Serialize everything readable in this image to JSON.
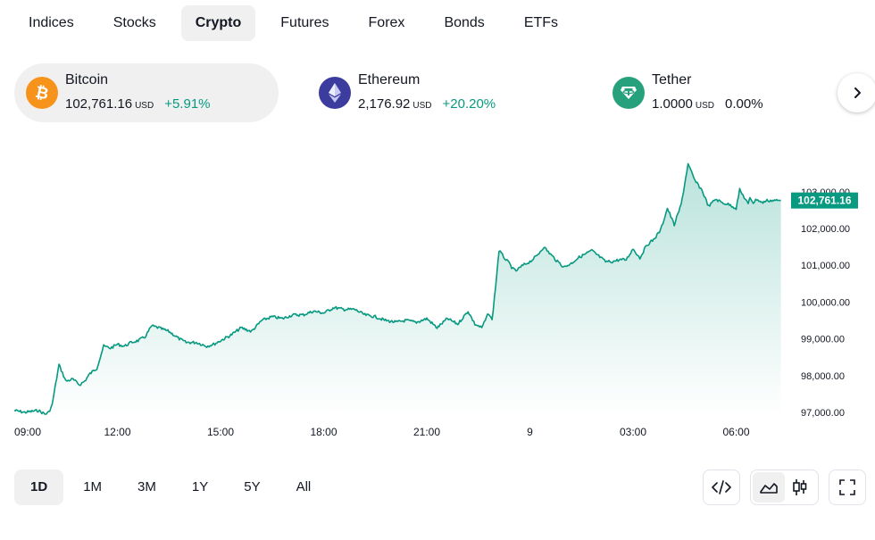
{
  "tabs": [
    {
      "label": "Indices",
      "active": false
    },
    {
      "label": "Stocks",
      "active": false
    },
    {
      "label": "Crypto",
      "active": true
    },
    {
      "label": "Futures",
      "active": false
    },
    {
      "label": "Forex",
      "active": false
    },
    {
      "label": "Bonds",
      "active": false
    },
    {
      "label": "ETFs",
      "active": false
    }
  ],
  "assets": [
    {
      "name": "Bitcoin",
      "price": "102,761.16",
      "currency": "USD",
      "change": "+5.91%",
      "icon": "bitcoin-icon",
      "color": "#f7931a",
      "active": true
    },
    {
      "name": "Ethereum",
      "price": "2,176.92",
      "currency": "USD",
      "change": "+20.20%",
      "icon": "ethereum-icon",
      "color": "#3c3c9e",
      "active": false
    },
    {
      "name": "Tether",
      "price": "1.0000",
      "currency": "USD",
      "change": "0.00%",
      "icon": "tether-icon",
      "color": "#26a17b",
      "active": false
    }
  ],
  "colors": {
    "accent": "#089981",
    "area_top": "#089981",
    "text": "#131722",
    "axis_text": "#787b86"
  },
  "chart_data": {
    "type": "area",
    "x_ticks": [
      "09:00",
      "12:00",
      "15:00",
      "18:00",
      "21:00",
      "9",
      "03:00",
      "06:00"
    ],
    "y_ticks": [
      "97,000.00",
      "98,000.00",
      "99,000.00",
      "100,000.00",
      "101,000.00",
      "102,000.00",
      "103,000.00"
    ],
    "ylim": [
      96950,
      103800
    ],
    "last_value_label": "102,761.16",
    "last_value": 102761.16,
    "x_hours": [
      0,
      0.3,
      0.7,
      0.9,
      1.0,
      1.1,
      1.3,
      1.5,
      1.7,
      1.9,
      2.05,
      2.2,
      2.4,
      2.6,
      2.8,
      3.0,
      3.2,
      3.4,
      3.6,
      3.8,
      4.0,
      4.2,
      4.5,
      4.8,
      5.0,
      5.3,
      5.6,
      5.8,
      6.0,
      6.3,
      6.6,
      6.9,
      7.2,
      7.5,
      7.8,
      8.1,
      8.4,
      8.7,
      9.0,
      9.3,
      9.6,
      9.9,
      10.2,
      10.5,
      10.8,
      11.1,
      11.4,
      11.7,
      12.0,
      12.3,
      12.6,
      12.9,
      13.2,
      13.4,
      13.6,
      13.8,
      13.9,
      14.0,
      14.1,
      14.3,
      14.4,
      14.5,
      14.6,
      14.8,
      15.0,
      15.2,
      15.4,
      15.6,
      15.8,
      16.0,
      16.2,
      16.4,
      16.6,
      16.8,
      17.0,
      17.2,
      17.4,
      17.6,
      17.8,
      18.0,
      18.2,
      18.4,
      18.6,
      18.8,
      19.0,
      19.2,
      19.4,
      19.6,
      19.8,
      20.0,
      20.2,
      20.4,
      20.6,
      20.8,
      21.0,
      21.1,
      21.2,
      21.3,
      21.35,
      21.4,
      21.5,
      21.6,
      21.75,
      21.9,
      22.0,
      22.3
    ],
    "values": [
      97050,
      97000,
      97050,
      96950,
      97000,
      97200,
      98300,
      97850,
      97900,
      97750,
      97850,
      98050,
      98200,
      98800,
      98750,
      98850,
      98800,
      98900,
      98950,
      99050,
      99350,
      99300,
      99200,
      99000,
      98900,
      98900,
      98800,
      98850,
      98950,
      99100,
      99300,
      99200,
      99500,
      99600,
      99550,
      99650,
      99650,
      99750,
      99700,
      99850,
      99800,
      99800,
      99650,
      99600,
      99500,
      99450,
      99500,
      99450,
      99550,
      99300,
      99550,
      99400,
      99750,
      99400,
      99300,
      99700,
      99500,
      100400,
      101400,
      101150,
      101050,
      100900,
      100850,
      101000,
      101100,
      101250,
      101500,
      101300,
      101100,
      100950,
      101050,
      101200,
      101300,
      101400,
      101250,
      101100,
      101100,
      101150,
      101150,
      101450,
      101200,
      101550,
      101700,
      101950,
      102550,
      102100,
      102650,
      103750,
      103300,
      103050,
      102600,
      102800,
      102700,
      102650,
      102550,
      103050,
      102900,
      102750,
      102650,
      102850,
      102700,
      102800,
      102700,
      102761,
      102761,
      102761
    ]
  },
  "ranges": [
    {
      "label": "1D",
      "active": true
    },
    {
      "label": "1M",
      "active": false
    },
    {
      "label": "3M",
      "active": false
    },
    {
      "label": "1Y",
      "active": false
    },
    {
      "label": "5Y",
      "active": false
    },
    {
      "label": "All",
      "active": false
    }
  ]
}
